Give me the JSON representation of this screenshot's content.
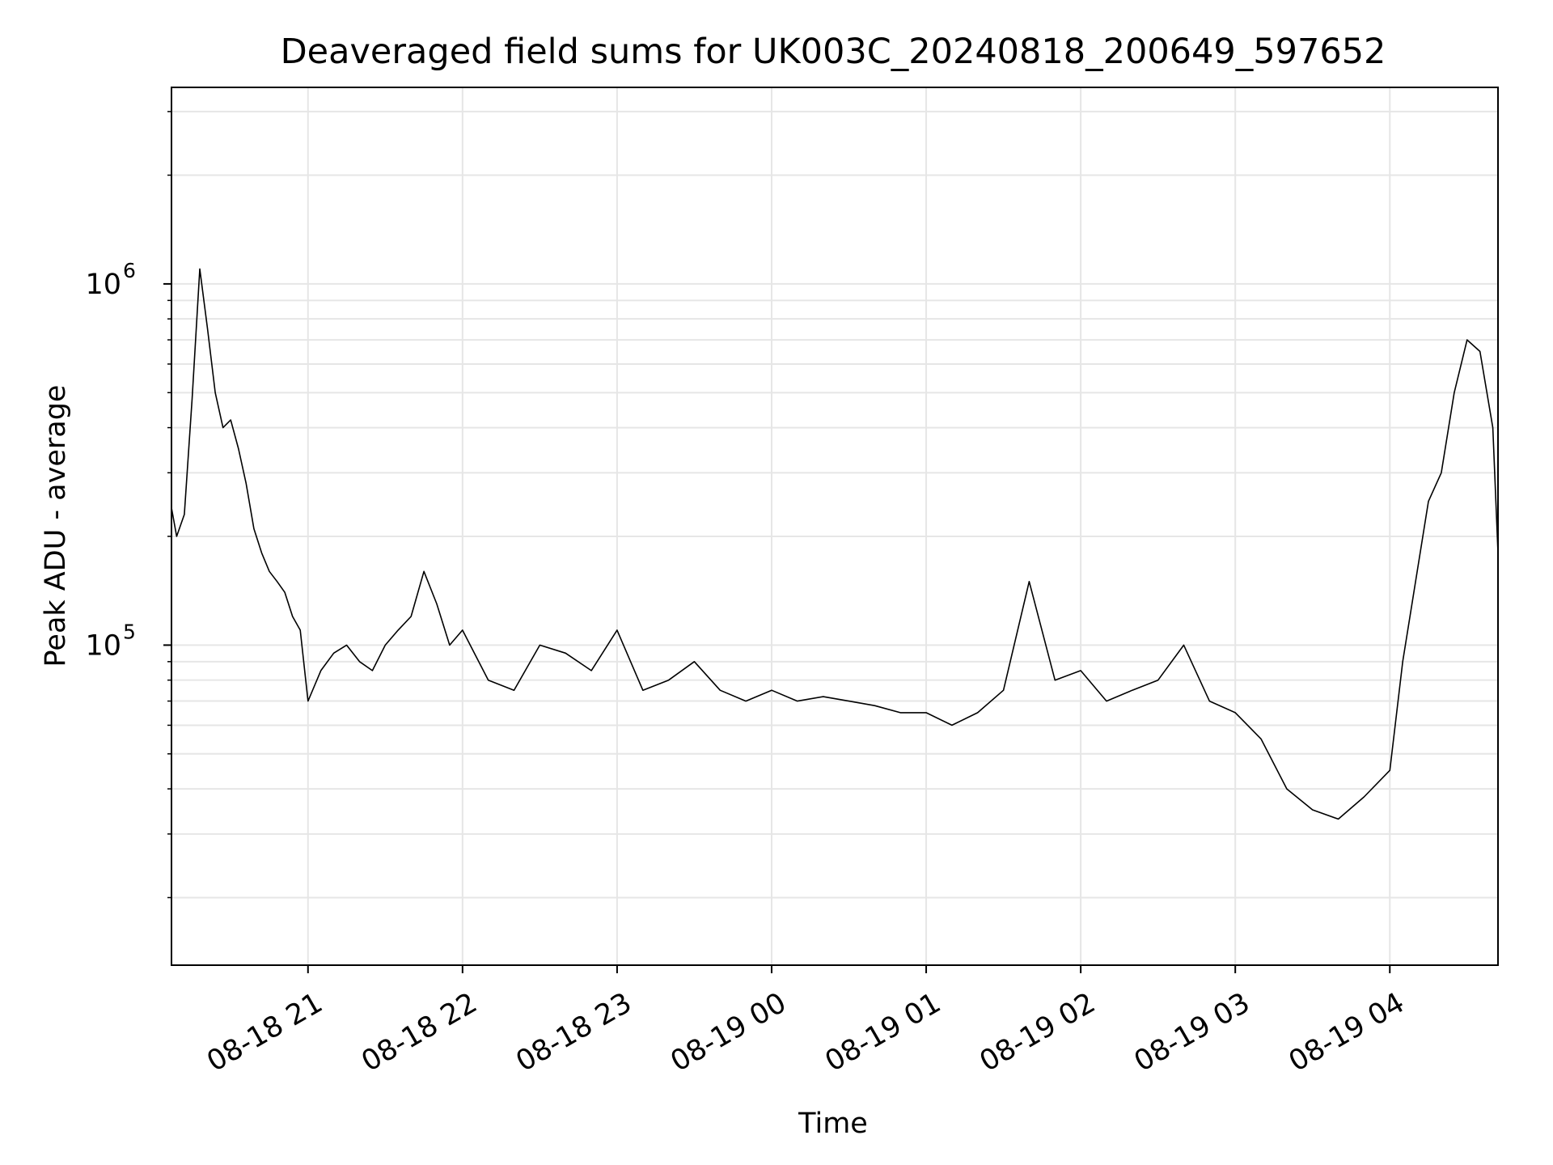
{
  "chart_data": {
    "type": "line",
    "title": "Deaveraged field sums for UK003C_20240818_200649_597652",
    "xlabel": "Time",
    "ylabel": "Peak ADU - average",
    "yscale": "log",
    "xlim": [
      "2024-08-18 20:07",
      "2024-08-19 04:42"
    ],
    "ylim": [
      13000,
      3500000
    ],
    "grid": true,
    "line_color": "#000000",
    "grid_color": "#e6e6e6",
    "xticks": [
      {
        "value": "2024-08-18 21:00",
        "label": "08-18 21"
      },
      {
        "value": "2024-08-18 22:00",
        "label": "08-18 22"
      },
      {
        "value": "2024-08-18 23:00",
        "label": "08-18 23"
      },
      {
        "value": "2024-08-19 00:00",
        "label": "08-19 00"
      },
      {
        "value": "2024-08-19 01:00",
        "label": "08-19 01"
      },
      {
        "value": "2024-08-19 02:00",
        "label": "08-19 02"
      },
      {
        "value": "2024-08-19 03:00",
        "label": "08-19 03"
      },
      {
        "value": "2024-08-19 04:00",
        "label": "08-19 04"
      }
    ],
    "yticks": [
      {
        "value": 100000,
        "base": "10",
        "exp": "5"
      },
      {
        "value": 1000000,
        "base": "10",
        "exp": "6"
      }
    ],
    "series": [
      {
        "x": [
          "2024-08-18 20:07",
          "2024-08-18 20:09",
          "2024-08-18 20:12",
          "2024-08-18 20:15",
          "2024-08-18 20:18",
          "2024-08-18 20:21",
          "2024-08-18 20:24",
          "2024-08-18 20:27",
          "2024-08-18 20:30",
          "2024-08-18 20:33",
          "2024-08-18 20:36",
          "2024-08-18 20:39",
          "2024-08-18 20:42",
          "2024-08-18 20:45",
          "2024-08-18 20:48",
          "2024-08-18 20:51",
          "2024-08-18 20:54",
          "2024-08-18 20:57",
          "2024-08-18 21:00",
          "2024-08-18 21:05",
          "2024-08-18 21:10",
          "2024-08-18 21:15",
          "2024-08-18 21:20",
          "2024-08-18 21:25",
          "2024-08-18 21:30",
          "2024-08-18 21:35",
          "2024-08-18 21:40",
          "2024-08-18 21:45",
          "2024-08-18 21:50",
          "2024-08-18 21:55",
          "2024-08-18 22:00",
          "2024-08-18 22:10",
          "2024-08-18 22:20",
          "2024-08-18 22:30",
          "2024-08-18 22:40",
          "2024-08-18 22:50",
          "2024-08-18 23:00",
          "2024-08-18 23:10",
          "2024-08-18 23:20",
          "2024-08-18 23:30",
          "2024-08-18 23:40",
          "2024-08-18 23:50",
          "2024-08-19 00:00",
          "2024-08-19 00:10",
          "2024-08-19 00:20",
          "2024-08-19 00:30",
          "2024-08-19 00:40",
          "2024-08-19 00:50",
          "2024-08-19 01:00",
          "2024-08-19 01:10",
          "2024-08-19 01:20",
          "2024-08-19 01:30",
          "2024-08-19 01:40",
          "2024-08-19 01:50",
          "2024-08-19 02:00",
          "2024-08-19 02:10",
          "2024-08-19 02:20",
          "2024-08-19 02:30",
          "2024-08-19 02:40",
          "2024-08-19 02:50",
          "2024-08-19 03:00",
          "2024-08-19 03:10",
          "2024-08-19 03:20",
          "2024-08-19 03:30",
          "2024-08-19 03:40",
          "2024-08-19 03:50",
          "2024-08-19 04:00",
          "2024-08-19 04:05",
          "2024-08-19 04:10",
          "2024-08-19 04:15",
          "2024-08-19 04:20",
          "2024-08-19 04:25",
          "2024-08-19 04:30",
          "2024-08-19 04:35",
          "2024-08-19 04:40",
          "2024-08-19 04:42"
        ],
        "values": [
          240000,
          200000,
          230000,
          480000,
          1100000,
          750000,
          500000,
          400000,
          420000,
          350000,
          280000,
          210000,
          180000,
          160000,
          150000,
          140000,
          120000,
          110000,
          70000,
          85000,
          95000,
          100000,
          90000,
          85000,
          100000,
          110000,
          120000,
          160000,
          130000,
          100000,
          110000,
          80000,
          75000,
          100000,
          95000,
          85000,
          110000,
          75000,
          80000,
          90000,
          75000,
          70000,
          75000,
          70000,
          72000,
          70000,
          68000,
          65000,
          65000,
          60000,
          65000,
          75000,
          150000,
          80000,
          85000,
          70000,
          75000,
          80000,
          100000,
          70000,
          65000,
          55000,
          40000,
          35000,
          33000,
          38000,
          45000,
          90000,
          150000,
          250000,
          300000,
          500000,
          700000,
          650000,
          400000,
          180000
        ]
      }
    ]
  }
}
